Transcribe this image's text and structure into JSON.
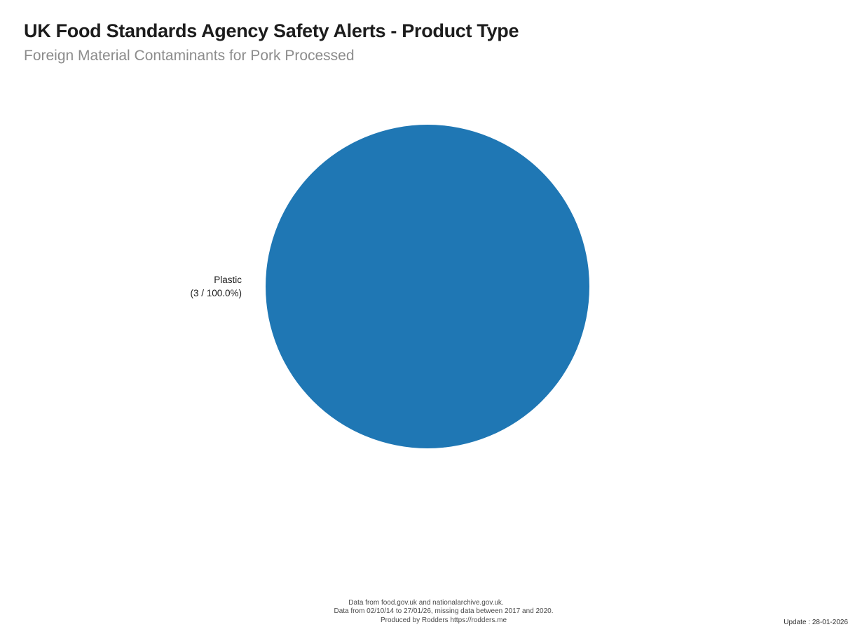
{
  "page": {
    "background_color": "#ffffff"
  },
  "header": {
    "title": "UK Food Standards Agency Safety Alerts - Product Type",
    "subtitle": "Foreign Material Contaminants for Pork Processed",
    "title_color": "#1c1c1c",
    "subtitle_color": "#8c8c8c"
  },
  "chart_data": {
    "type": "pie",
    "title": "UK Food Standards Agency Safety Alerts - Product Type",
    "subtitle": "Foreign Material Contaminants for Pork Processed",
    "categories": [
      "Plastic"
    ],
    "values": [
      3
    ],
    "percentages": [
      100.0
    ],
    "total": 3,
    "colors": [
      "#1f77b4"
    ],
    "label_lines": [
      "Plastic",
      "(3 / 100.0%)"
    ],
    "label_position": "left-outside",
    "legend": "none",
    "grid": "off"
  },
  "footer": {
    "source_line": "Data from food.gov.uk and nationalarchive.gov.uk.",
    "range_line": "Data from 02/10/14 to 27/01/26, missing data between 2017 and 2020.",
    "produced_line": "Produced by Rodders https://rodders.me",
    "update_text": "Update : 28-01-2026"
  }
}
